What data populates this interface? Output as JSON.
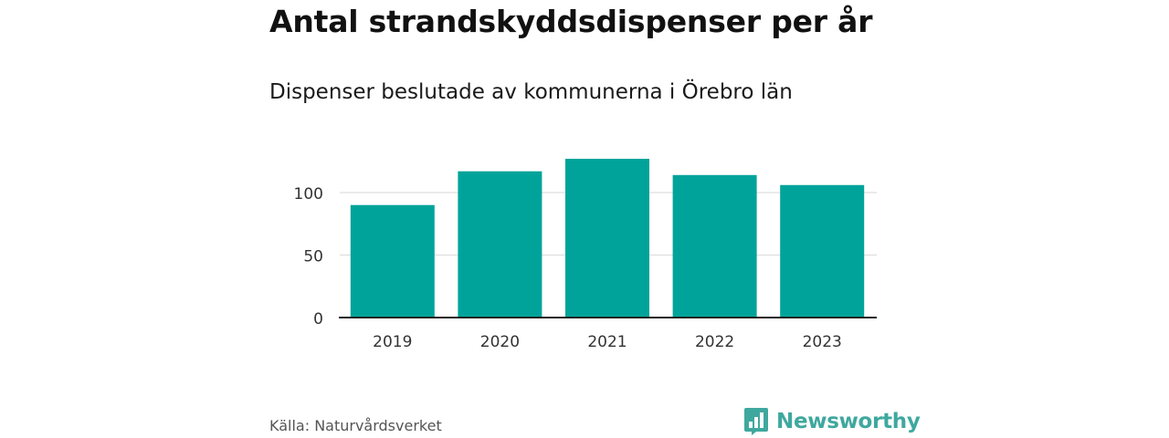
{
  "header": {
    "title": "Antal strandskyddsdispenser per år",
    "subtitle": "Dispenser beslutade av kommunerna i Örebro län"
  },
  "footer": {
    "source": "Källa: Naturvårdsverket",
    "brand": "Newsworthy",
    "brand_icon": "bar-chart-speech-bubble-icon"
  },
  "colors": {
    "bar": "#00A39A",
    "brand": "#3FA89E",
    "grid": "#dddddd",
    "axis": "#222222"
  },
  "chart_data": {
    "type": "bar",
    "title": "Antal strandskyddsdispenser per år",
    "subtitle": "Dispenser beslutade av kommunerna i Örebro län",
    "categories": [
      "2019",
      "2020",
      "2021",
      "2022",
      "2023"
    ],
    "values": [
      90,
      117,
      127,
      114,
      106
    ],
    "xlabel": "",
    "ylabel": "",
    "ylim": [
      0,
      140
    ],
    "yticks": [
      0,
      50,
      100
    ],
    "grid": true,
    "legend": "none"
  }
}
